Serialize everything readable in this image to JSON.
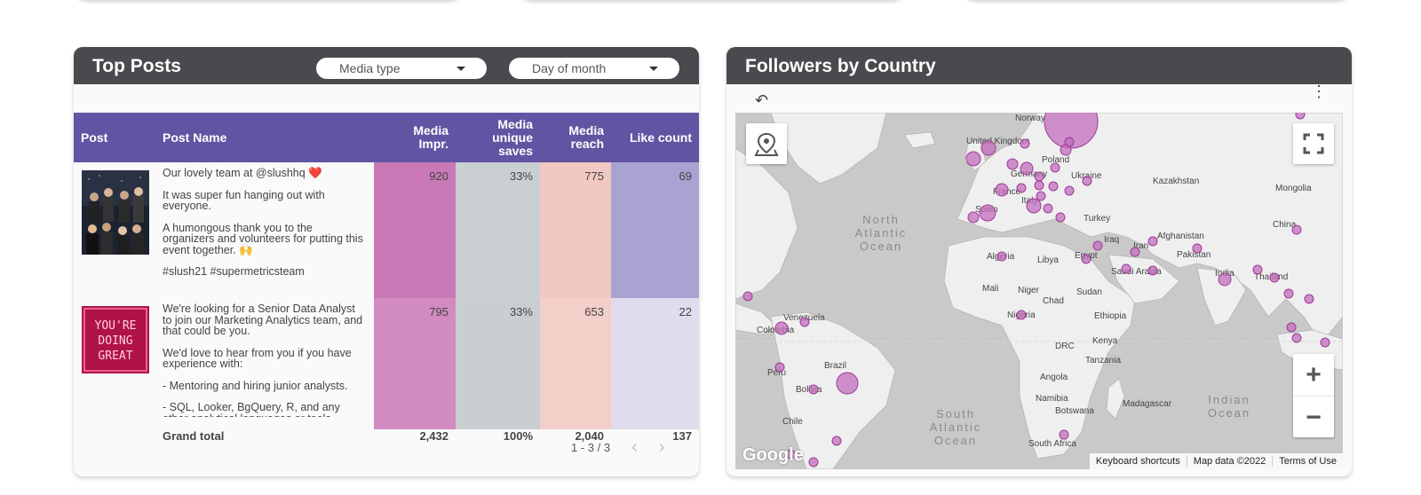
{
  "top_posts": {
    "title": "Top Posts",
    "filter_media_type": "Media type",
    "filter_day": "Day of month",
    "columns": [
      "Post",
      "Post Name",
      "Media Impr.",
      "Media unique saves",
      "Media reach",
      "Like count"
    ],
    "rows": [
      {
        "paragraphs": [
          "Our lovely team at @slushhq ❤️",
          "It was super fun hanging out with everyone.",
          "A humongous thank you to the organizers and volunteers for putting this event together. 🙌",
          "#slush21 #supermetricsteam"
        ],
        "media_impr": "920",
        "media_unique_saves": "33%",
        "media_reach": "775",
        "like_count": "69"
      },
      {
        "thumb_text": [
          "YOU'RE",
          "DOING",
          "GREAT"
        ],
        "paragraphs": [
          "We're looking for a Senior Data Analyst to join our Marketing Analytics team, and that could be you.",
          "We'd love to hear from you if you have experience with:",
          "- Mentoring and hiring junior analysts.",
          "- SQL, Looker, BgQuery, R, and any other analytical languages or tools."
        ],
        "media_impr": "795",
        "media_unique_saves": "33%",
        "media_reach": "653",
        "like_count": "22"
      }
    ],
    "grand_total": {
      "label": "Grand total",
      "media_impr": "2,432",
      "media_unique_saves": "100%",
      "media_reach": "2,040",
      "like_count": "137"
    },
    "pagination": "1 - 3 / 3"
  },
  "followers": {
    "title": "Followers by Country",
    "countries": [
      "Norway",
      "United Kingdom",
      "Poland",
      "Germany",
      "Ukraine",
      "Kazakhstan",
      "Mongolia",
      "France",
      "Spain",
      "Italy",
      "Turkey",
      "China",
      "Afghanistan",
      "Iraq",
      "Iran",
      "Pakistan",
      "Algeria",
      "Libya",
      "Egypt",
      "Saudi Arabia",
      "India",
      "Thailand",
      "Mali",
      "Niger",
      "Chad",
      "Sudan",
      "Venezuela",
      "Colombia",
      "Nigeria",
      "Ethiopia",
      "DRC",
      "Kenya",
      "Tanzania",
      "Peru",
      "Brazil",
      "Bolivia",
      "Angola",
      "Namibia",
      "Botswana",
      "Madagascar",
      "Chile",
      "South Africa"
    ],
    "oceans": {
      "north_atlantic": [
        "North",
        "Atlantic",
        "Ocean"
      ],
      "south_atlantic": [
        "South",
        "Atlantic",
        "Ocean"
      ],
      "indian": [
        "Indian",
        "Ocean"
      ]
    },
    "google": "Google",
    "attribution": [
      "Keyboard shortcuts",
      "Map data ©2022",
      "Terms of Use"
    ]
  }
}
